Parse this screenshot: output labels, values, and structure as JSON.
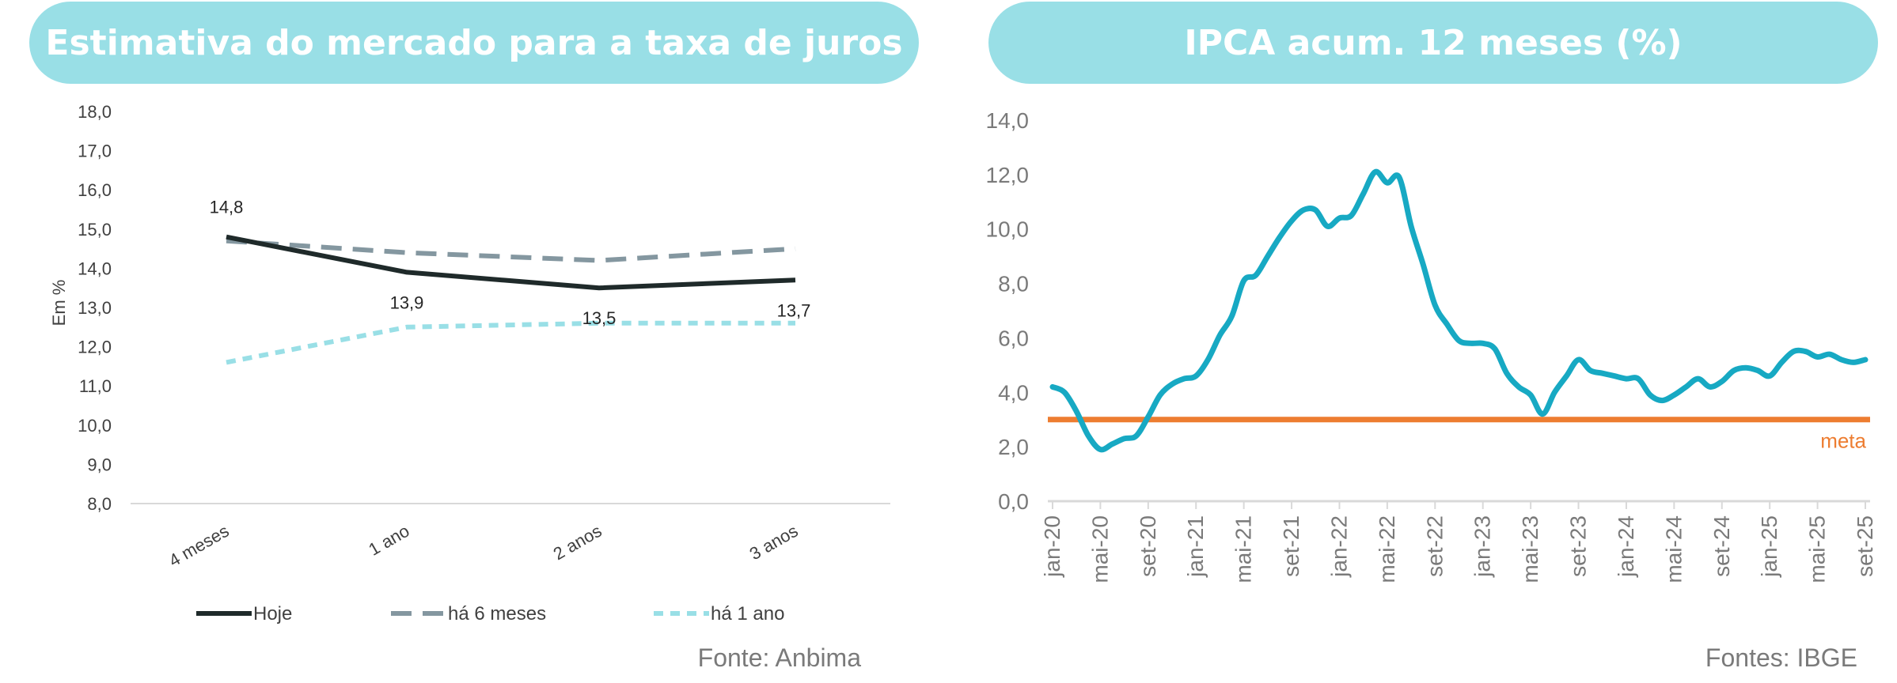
{
  "chart_data": [
    {
      "type": "line",
      "title": "Estimativa do mercado para a taxa de juros",
      "ylabel": "Em %",
      "xlabel": "",
      "ylim": [
        8.0,
        18.0
      ],
      "yticks": [
        "18,0",
        "17,0",
        "16,0",
        "15,0",
        "14,0",
        "13,0",
        "12,0",
        "11,0",
        "10,0",
        "9,0",
        "8,0"
      ],
      "categories": [
        "4 meses",
        "1 ano",
        "2 anos",
        "3 anos"
      ],
      "series": [
        {
          "name": "Hoje",
          "values": [
            14.8,
            13.9,
            13.5,
            13.7
          ],
          "color": "#1f2a2a",
          "dash": "solid",
          "labels": [
            "14,8",
            "13,9",
            "13,5",
            "13,7"
          ]
        },
        {
          "name": "há 6 meses",
          "values": [
            14.7,
            14.4,
            14.2,
            14.5
          ],
          "color": "#8497a0",
          "dash": "long"
        },
        {
          "name": "há 1 ano",
          "values": [
            11.6,
            12.5,
            12.6,
            12.6
          ],
          "color": "#99dfe6",
          "dash": "short"
        }
      ],
      "legend_position": "bottom",
      "grid": false,
      "source": "Fonte: Anbima"
    },
    {
      "type": "line",
      "title": "IPCA acum. 12 meses (%)",
      "xlabel": "",
      "ylabel": "",
      "ylim": [
        0.0,
        14.0
      ],
      "yticks": [
        "14,0",
        "12,0",
        "10,0",
        "8,0",
        "6,0",
        "4,0",
        "2,0",
        "0,0"
      ],
      "x_tick_labels": [
        "jan-20",
        "mai-20",
        "set-20",
        "jan-21",
        "mai-21",
        "set-21",
        "jan-22",
        "mai-22",
        "set-22",
        "jan-23",
        "mai-23",
        "set-23",
        "jan-24",
        "mai-24",
        "set-24",
        "jan-25",
        "mai-25",
        "set-25"
      ],
      "x": [
        "2020-01",
        "2020-02",
        "2020-03",
        "2020-04",
        "2020-05",
        "2020-06",
        "2020-07",
        "2020-08",
        "2020-09",
        "2020-10",
        "2020-11",
        "2020-12",
        "2021-01",
        "2021-02",
        "2021-03",
        "2021-04",
        "2021-05",
        "2021-06",
        "2021-07",
        "2021-08",
        "2021-09",
        "2021-10",
        "2021-11",
        "2021-12",
        "2022-01",
        "2022-02",
        "2022-03",
        "2022-04",
        "2022-05",
        "2022-06",
        "2022-07",
        "2022-08",
        "2022-09",
        "2022-10",
        "2022-11",
        "2022-12",
        "2023-01",
        "2023-02",
        "2023-03",
        "2023-04",
        "2023-05",
        "2023-06",
        "2023-07",
        "2023-08",
        "2023-09",
        "2023-10",
        "2023-11",
        "2023-12",
        "2024-01",
        "2024-02",
        "2024-03",
        "2024-04",
        "2024-05",
        "2024-06",
        "2024-07",
        "2024-08",
        "2024-09",
        "2024-10",
        "2024-11",
        "2024-12",
        "2025-01",
        "2025-02",
        "2025-03",
        "2025-04",
        "2025-05",
        "2025-06",
        "2025-07",
        "2025-08",
        "2025-09"
      ],
      "series": [
        {
          "values": [
            4.2,
            4.0,
            3.3,
            2.4,
            1.9,
            2.1,
            2.3,
            2.4,
            3.1,
            3.9,
            4.3,
            4.5,
            4.6,
            5.2,
            6.1,
            6.8,
            8.1,
            8.3,
            9.0,
            9.7,
            10.3,
            10.7,
            10.7,
            10.1,
            10.4,
            10.5,
            11.3,
            12.1,
            11.7,
            11.9,
            10.1,
            8.7,
            7.2,
            6.5,
            5.9,
            5.8,
            5.8,
            5.6,
            4.7,
            4.2,
            3.9,
            3.2,
            4.0,
            4.6,
            5.2,
            4.8,
            4.7,
            4.6,
            4.5,
            4.5,
            3.9,
            3.7,
            3.9,
            4.2,
            4.5,
            4.2,
            4.4,
            4.8,
            4.9,
            4.8,
            4.6,
            5.1,
            5.5,
            5.5,
            5.3,
            5.4,
            5.2,
            5.1,
            5.2
          ],
          "color": "#17a9c3"
        }
      ],
      "reference_lines": [
        {
          "label": "meta",
          "value": 3.0,
          "color": "#ed7d31"
        }
      ],
      "grid": false,
      "source": "Fontes: IBGE"
    }
  ]
}
